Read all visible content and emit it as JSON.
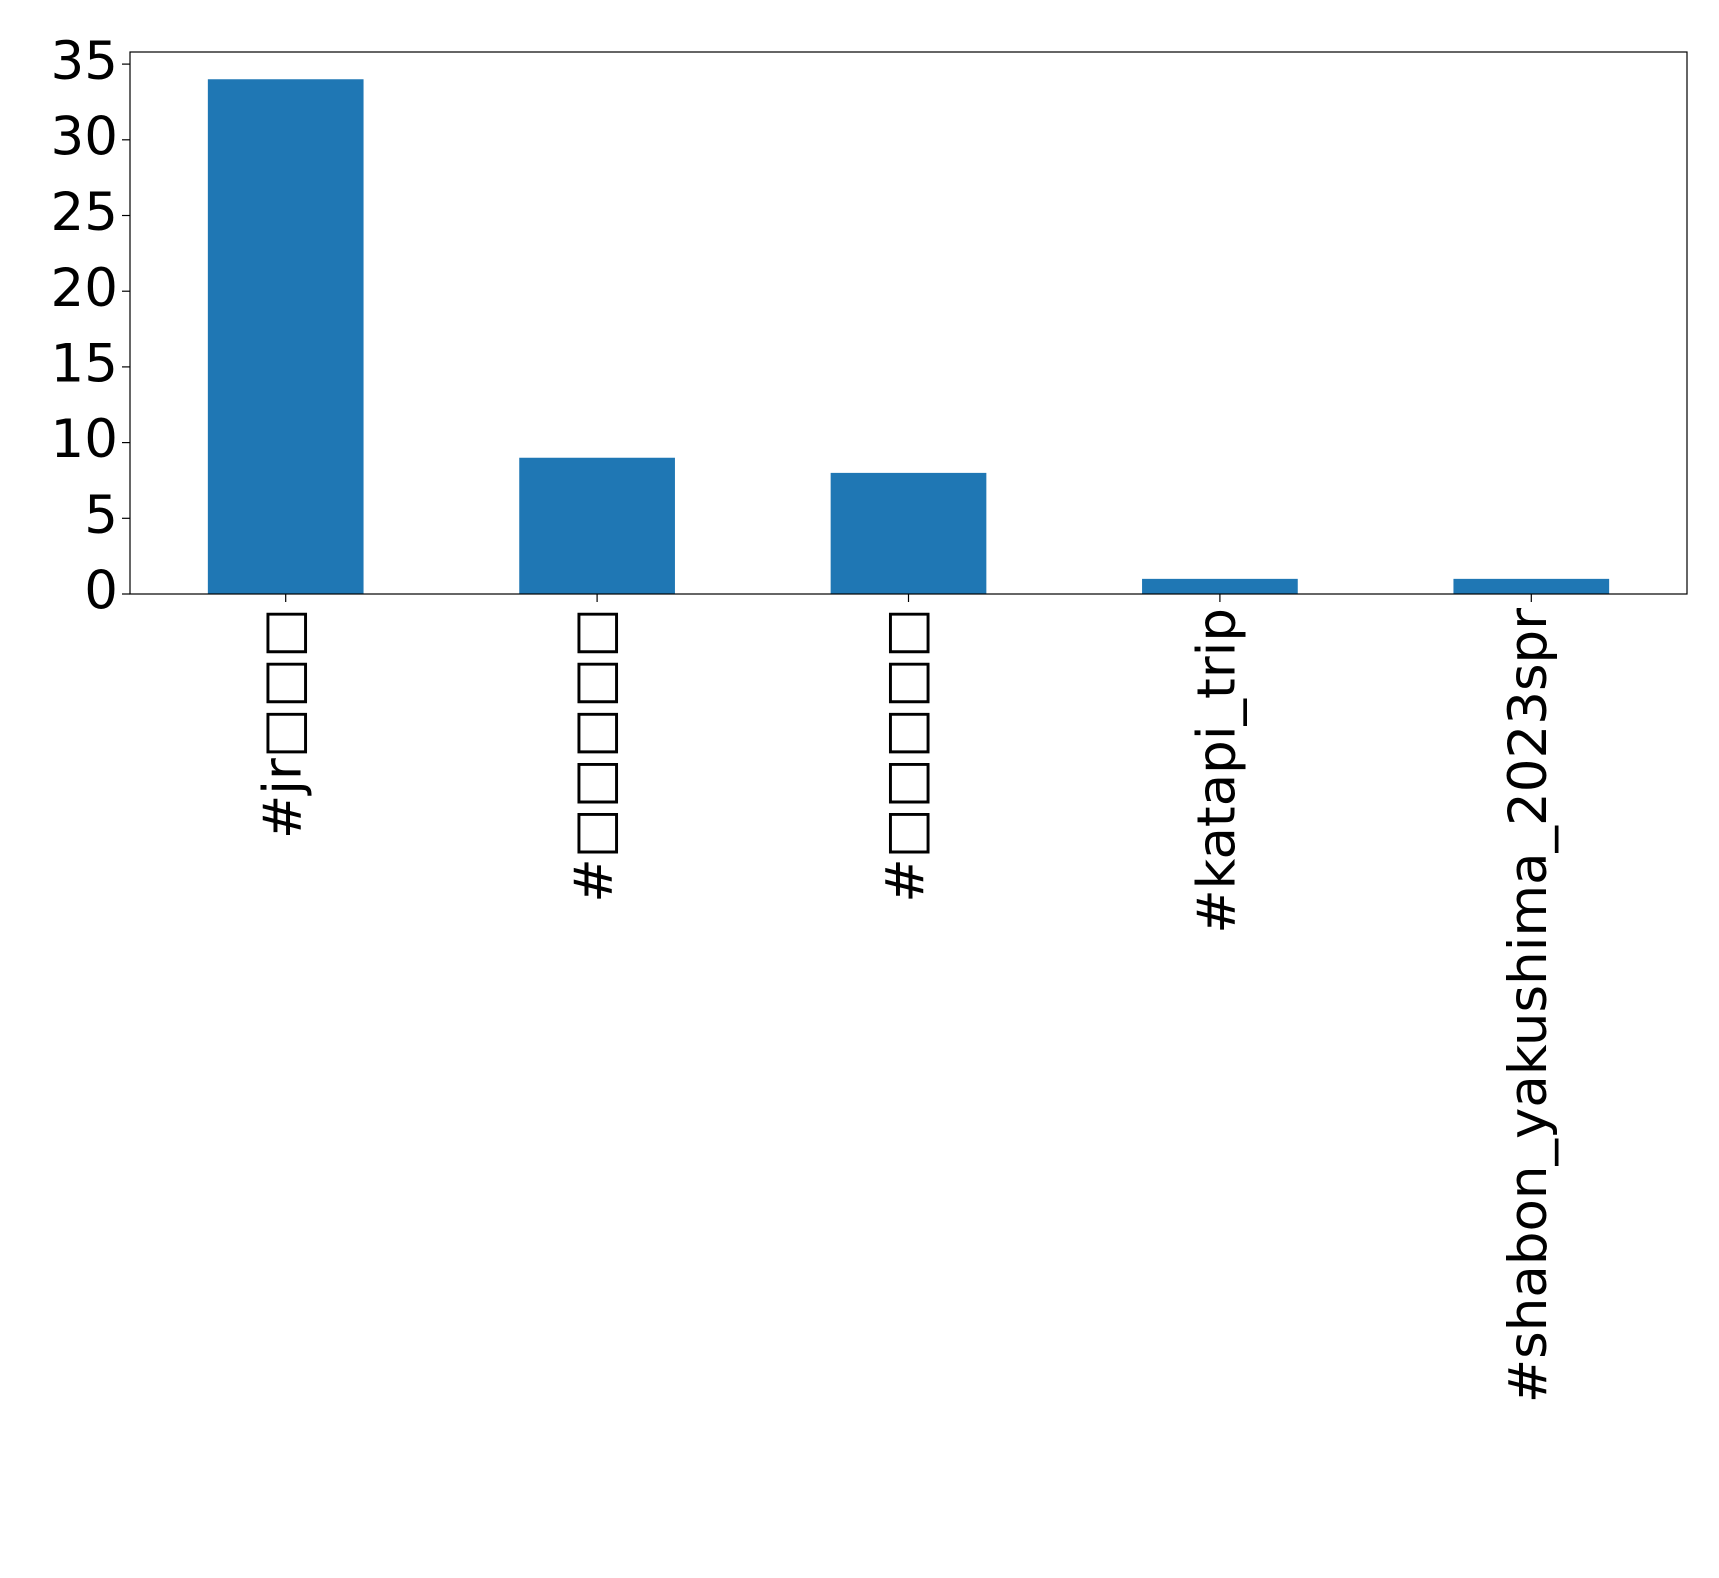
{
  "chart_data": {
    "type": "bar",
    "categories": [
      "#jr□□□",
      "#□□□□□",
      "#□□□□□",
      "#katapi_trip",
      "#shabon_yakushima_2023spr"
    ],
    "values": [
      34,
      9,
      8,
      1,
      1
    ],
    "color": "#1f77b4",
    "ylim": [
      0,
      35.8
    ],
    "yticks": [
      0,
      5,
      10,
      15,
      20,
      25,
      30,
      35
    ],
    "grid": false
  }
}
